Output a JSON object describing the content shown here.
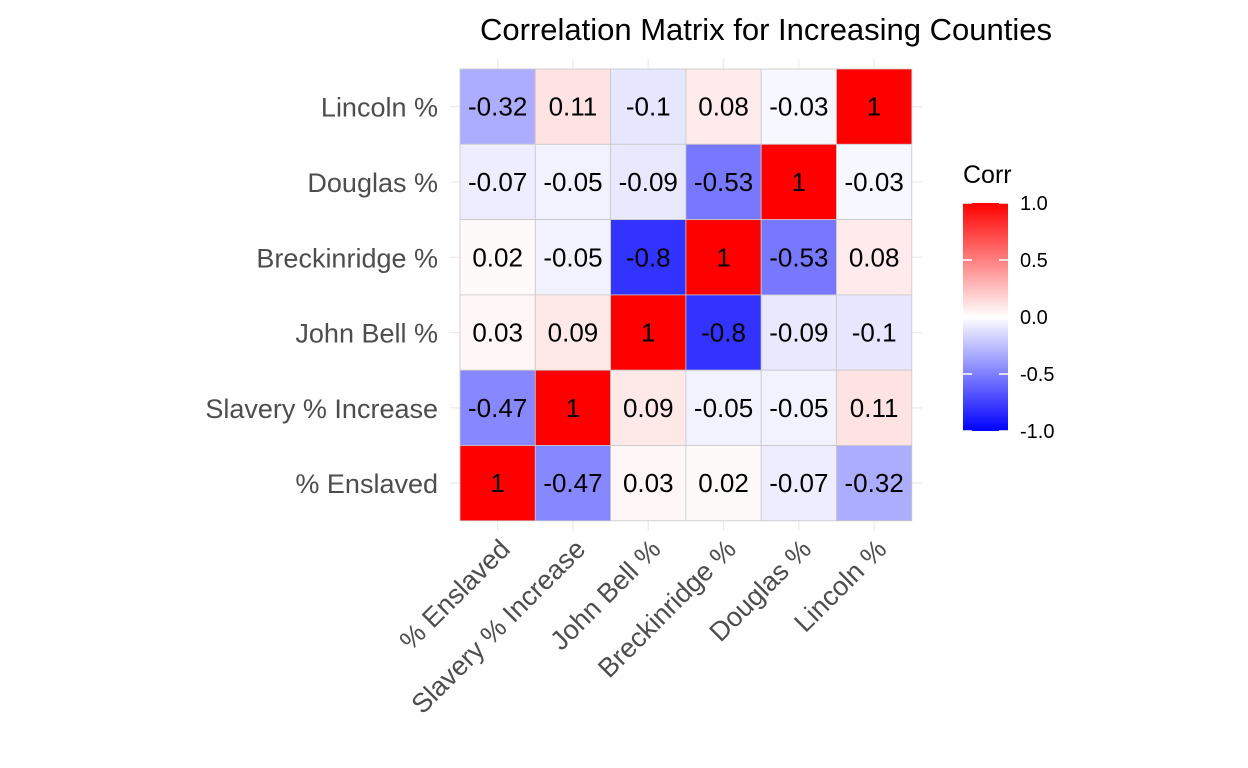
{
  "chart_data": {
    "type": "heatmap",
    "title": "Correlation Matrix for Increasing Counties",
    "variables": [
      "% Enslaved",
      "Slavery % Increase",
      "John Bell %",
      "Breckinridge %",
      "Douglas %",
      "Lincoln %"
    ],
    "matrix": [
      [
        1,
        -0.47,
        0.03,
        0.02,
        -0.07,
        -0.32
      ],
      [
        -0.47,
        1,
        0.09,
        -0.05,
        -0.05,
        0.11
      ],
      [
        0.03,
        0.09,
        1,
        -0.8,
        -0.09,
        -0.1
      ],
      [
        0.02,
        -0.05,
        -0.8,
        1,
        -0.53,
        0.08
      ],
      [
        -0.07,
        -0.05,
        -0.09,
        -0.53,
        1,
        -0.03
      ],
      [
        -0.32,
        0.11,
        -0.1,
        0.08,
        -0.03,
        1
      ]
    ],
    "legend": {
      "title": "Corr",
      "ticks": [
        "1.0",
        "0.5",
        "0.0",
        "-0.5",
        "-1.0"
      ],
      "tick_values": [
        1.0,
        0.5,
        0.0,
        -0.5,
        -1.0
      ],
      "range": [
        -1,
        1
      ],
      "colors": {
        "low": "#0000ff",
        "mid": "#ffffff",
        "high": "#ff0000"
      },
      "placement": "right"
    },
    "grid": true
  }
}
